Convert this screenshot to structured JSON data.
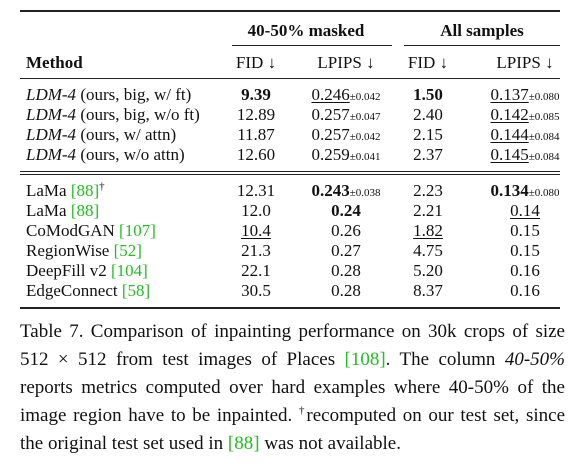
{
  "table": {
    "group_headers": [
      "40-50% masked",
      "All samples"
    ],
    "columns": {
      "method": "Method",
      "fid1": "FID ↓",
      "lpips1": "LPIPS ↓",
      "fid2": "FID ↓",
      "lpips2": "LPIPS ↓"
    },
    "pm": "±",
    "rows_a": [
      {
        "name": "LDM-4",
        "desc": " (ours, big, w/ ft)",
        "fid1": "9.39",
        "lpips1": "0.246",
        "lpips1_pm": "0.042",
        "fid2": "1.50",
        "lpips2": "0.137",
        "lpips2_pm": "0.080"
      },
      {
        "name": "LDM-4",
        "desc": " (ours, big, w/o ft)",
        "fid1": "12.89",
        "lpips1": "0.257",
        "lpips1_pm": "0.047",
        "fid2": "2.40",
        "lpips2": "0.142",
        "lpips2_pm": "0.085"
      },
      {
        "name": "LDM-4",
        "desc": " (ours, w/ attn)",
        "fid1": "11.87",
        "lpips1": "0.257",
        "lpips1_pm": "0.042",
        "fid2": "2.15",
        "lpips2": "0.144",
        "lpips2_pm": "0.084"
      },
      {
        "name": "LDM-4",
        "desc": " (ours, w/o attn)",
        "fid1": "12.60",
        "lpips1": "0.259",
        "lpips1_pm": "0.041",
        "fid2": "2.37",
        "lpips2": "0.145",
        "lpips2_pm": "0.084"
      }
    ],
    "rows_b": [
      {
        "name": "LaMa ",
        "ref": "[88]",
        "dagger": "†",
        "fid1": "12.31",
        "lpips1": "0.243",
        "lpips1_pm": "0.038",
        "fid2": "2.23",
        "lpips2": "0.134",
        "lpips2_pm": "0.080"
      },
      {
        "name": "LaMa ",
        "ref": "[88]",
        "dagger": "",
        "fid1": "12.0",
        "lpips1": "0.24",
        "lpips1_pm": "",
        "fid2": "2.21",
        "lpips2": "0.14",
        "lpips2_pm": ""
      },
      {
        "name": "CoModGAN ",
        "ref": "[107]",
        "dagger": "",
        "fid1": "10.4",
        "lpips1": "0.26",
        "lpips1_pm": "",
        "fid2": "1.82",
        "lpips2": "0.15",
        "lpips2_pm": ""
      },
      {
        "name": "RegionWise ",
        "ref": "[52]",
        "dagger": "",
        "fid1": "21.3",
        "lpips1": "0.27",
        "lpips1_pm": "",
        "fid2": "4.75",
        "lpips2": "0.15",
        "lpips2_pm": ""
      },
      {
        "name": "DeepFill v2 ",
        "ref": "[104]",
        "dagger": "",
        "fid1": "22.1",
        "lpips1": "0.28",
        "lpips1_pm": "",
        "fid2": "5.20",
        "lpips2": "0.16",
        "lpips2_pm": ""
      },
      {
        "name": "EdgeConnect ",
        "ref": "[58]",
        "dagger": "",
        "fid1": "30.5",
        "lpips1": "0.28",
        "lpips1_pm": "",
        "fid2": "8.37",
        "lpips2": "0.16",
        "lpips2_pm": ""
      }
    ]
  },
  "caption": {
    "label": "Table 7.",
    "t1": " Comparison of inpainting performance on 30k crops of size 512 × 512 from test images of Places ",
    "ref1": "[108]",
    "t2": ". The column ",
    "italic": "40-50%",
    "t3": " reports metrics computed over hard examples where 40-50% of the image region have to be inpainted. ",
    "dagger": "†",
    "t4": "recomputed on our test set, since the original test set used in ",
    "ref2": "[88]",
    "t5": " was not available."
  }
}
